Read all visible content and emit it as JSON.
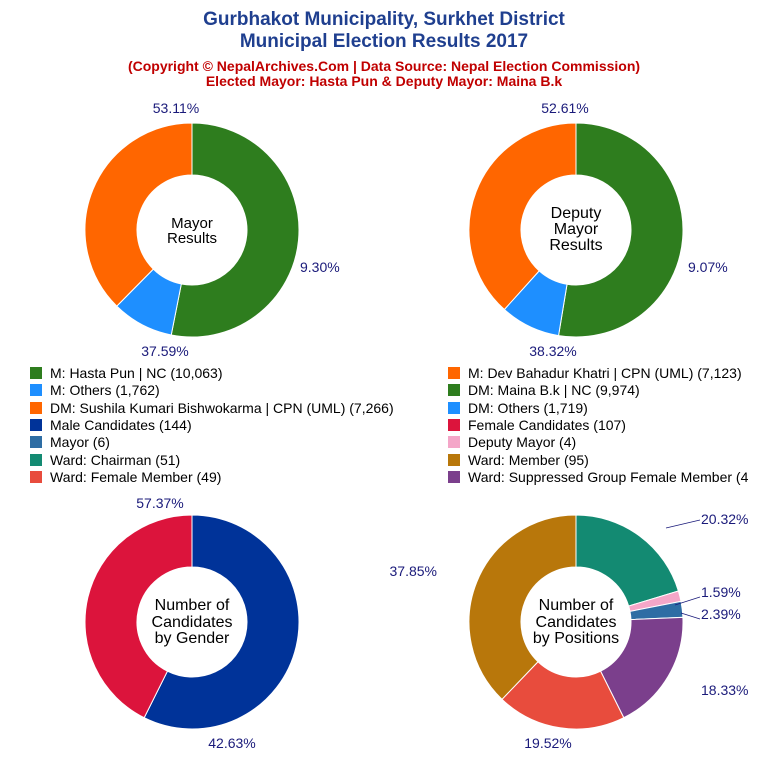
{
  "header": {
    "title_line1": "Gurbhakot Municipality, Surkhet District",
    "title_line2": "Municipal Election Results 2017",
    "subtitle_line1": "(Copyright © NepalArchives.Com | Data Source: Nepal Election Commission)",
    "subtitle_line2": "Elected Mayor: Hasta Pun & Deputy Mayor: Maina B.k"
  },
  "legend": [
    {
      "label": "M: Hasta Pun | NC (10,063)",
      "color": "#2e7d1e"
    },
    {
      "label": "M: Dev Bahadur Khatri | CPN (UML) (7,123)",
      "color": "#ff6600"
    },
    {
      "label": "M: Others (1,762)",
      "color": "#1e8fff"
    },
    {
      "label": "DM: Maina B.k | NC (9,974)",
      "color": "#2e7d1e"
    },
    {
      "label": "DM: Sushila Kumari Bishwokarma | CPN (UML) (7,266)",
      "color": "#ff6600"
    },
    {
      "label": "DM: Others (1,719)",
      "color": "#1e8fff"
    },
    {
      "label": "Male Candidates (144)",
      "color": "#003399"
    },
    {
      "label": "Female Candidates (107)",
      "color": "#dc143c"
    },
    {
      "label": "Mayor (6)",
      "color": "#2e6da4"
    },
    {
      "label": "Deputy Mayor (4)",
      "color": "#f4a6c8"
    },
    {
      "label": "Ward: Chairman (51)",
      "color": "#138a72"
    },
    {
      "label": "Ward: Member (95)",
      "color": "#b8770b"
    },
    {
      "label": "Ward: Female Member (49)",
      "color": "#e84c3d"
    },
    {
      "label": "Ward: Suppressed Group Female Member (4",
      "color": "#7b3f8c"
    }
  ],
  "chart_data": [
    {
      "type": "pie",
      "center_label": [
        "Mayor",
        "Results"
      ],
      "slices": [
        {
          "label": "M: Hasta Pun | NC",
          "value": 10063,
          "percent_label": "53.11%",
          "color": "#2e7d1e"
        },
        {
          "label": "M: Others",
          "value": 1762,
          "percent_label": "9.30%",
          "color": "#1e8fff"
        },
        {
          "label": "M: Dev Bahadur Khatri | CPN (UML)",
          "value": 7123,
          "percent_label": "37.59%",
          "color": "#ff6600"
        }
      ]
    },
    {
      "type": "pie",
      "center_label": [
        "Deputy",
        "Mayor",
        "Results"
      ],
      "slices": [
        {
          "label": "DM: Maina B.k | NC",
          "value": 9974,
          "percent_label": "52.61%",
          "color": "#2e7d1e"
        },
        {
          "label": "DM: Others",
          "value": 1719,
          "percent_label": "9.07%",
          "color": "#1e8fff"
        },
        {
          "label": "DM: Sushila Kumari Bishwokarma | CPN (UML)",
          "value": 7266,
          "percent_label": "38.32%",
          "color": "#ff6600"
        }
      ]
    },
    {
      "type": "pie",
      "center_label": [
        "Number of",
        "Candidates",
        "by Gender"
      ],
      "slices": [
        {
          "label": "Male Candidates",
          "value": 144,
          "percent_label": "57.37%",
          "color": "#003399"
        },
        {
          "label": "Female Candidates",
          "value": 107,
          "percent_label": "42.63%",
          "color": "#dc143c"
        }
      ]
    },
    {
      "type": "pie",
      "center_label": [
        "Number of",
        "Candidates",
        "by Positions"
      ],
      "slices": [
        {
          "label": "Ward: Chairman",
          "value": 51,
          "percent_label": "20.32%",
          "color": "#138a72"
        },
        {
          "label": "Deputy Mayor",
          "value": 4,
          "percent_label": "1.59%",
          "color": "#f4a6c8"
        },
        {
          "label": "Mayor",
          "value": 6,
          "percent_label": "2.39%",
          "color": "#2e6da4"
        },
        {
          "label": "Ward: Suppressed Group Female Member",
          "value": 46,
          "percent_label": "18.33%",
          "color": "#7b3f8c"
        },
        {
          "label": "Ward: Female Member",
          "value": 49,
          "percent_label": "19.52%",
          "color": "#e84c3d"
        },
        {
          "label": "Ward: Member",
          "value": 95,
          "percent_label": "37.85%",
          "color": "#b8770b"
        }
      ]
    }
  ]
}
